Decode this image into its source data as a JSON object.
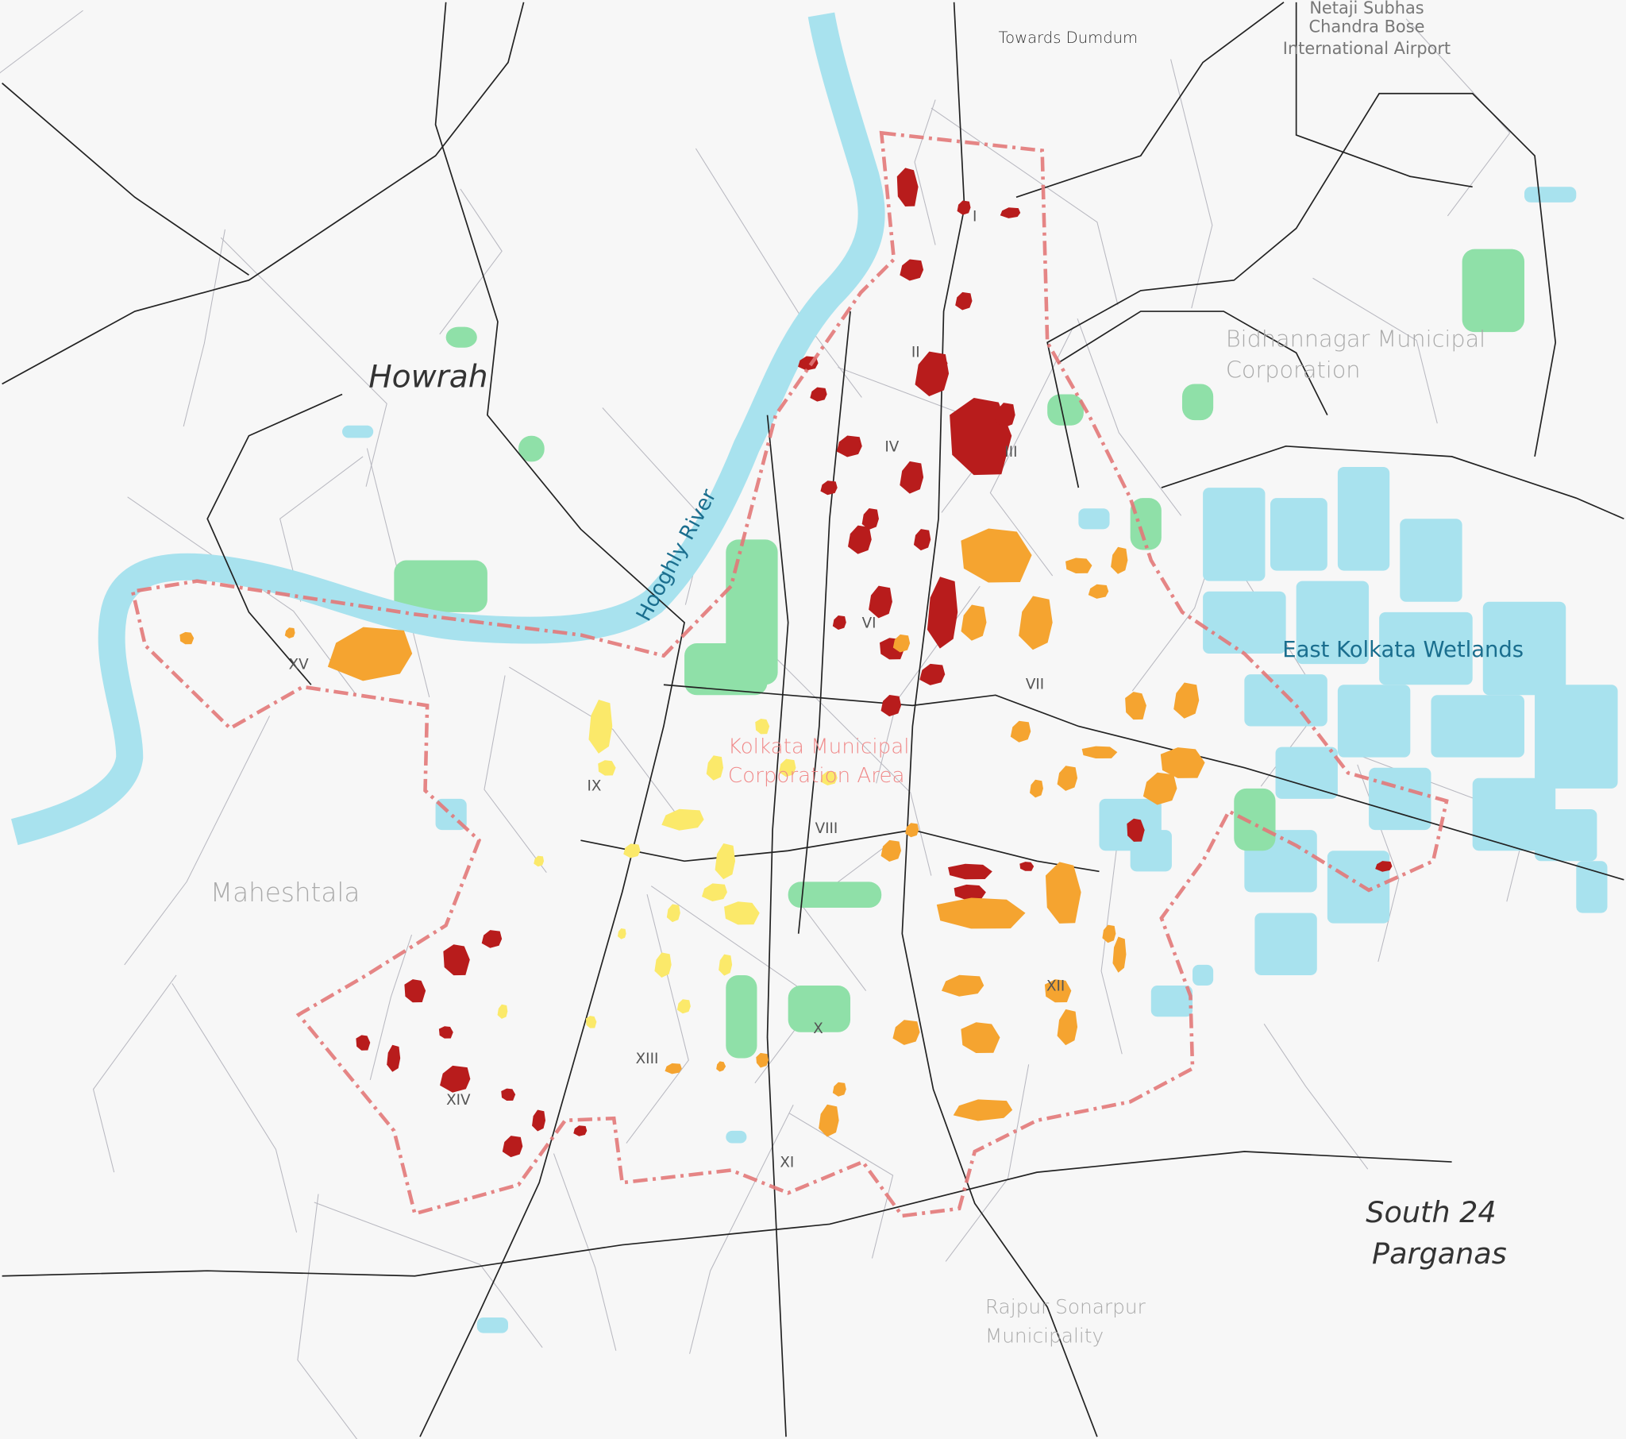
{
  "labels": {
    "towards_dumdum": "Towards Dumdum",
    "airport": [
      "Netaji Subhas",
      "Chandra Bose",
      "International Airport"
    ],
    "howrah": "Howrah",
    "bidhannagar": [
      "Bidhannagar Municipal",
      "Corporation"
    ],
    "hooghly": "Hooghly River",
    "kmc": [
      "Kolkata Municipal",
      "Corporation Area"
    ],
    "wetlands": "East Kolkata Wetlands",
    "maheshtala": "Maheshtala",
    "south24": [
      "South 24",
      "Parganas"
    ],
    "rajpur": [
      "Rajpur Sonarpur",
      "Municipality"
    ]
  },
  "boroughs": [
    "I",
    "II",
    "III",
    "IV",
    "VI",
    "VII",
    "VIII",
    "IX",
    "X",
    "XI",
    "XII",
    "XIII",
    "XIV",
    "XV"
  ],
  "colors": {
    "background": "#f7f7f7",
    "water": "#a8e2ee",
    "park": "#8fe0a8",
    "boundary": "#e27878",
    "road": "#222222",
    "red_zone": "#b81c1c",
    "orange_zone": "#f5a430",
    "yellow_zone": "#fbe96a",
    "water_label": "#1a6e8e",
    "kmc_label": "#f08a8a"
  }
}
